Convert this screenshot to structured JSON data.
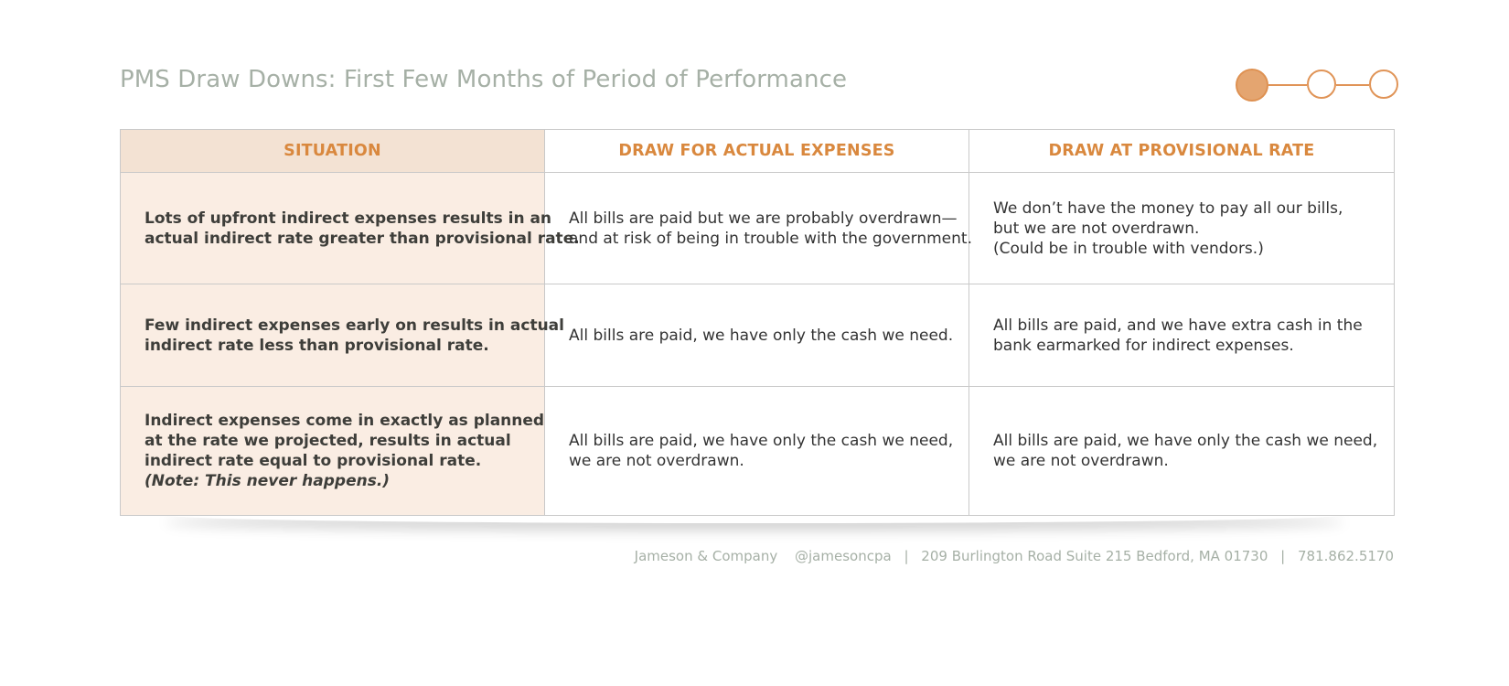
{
  "header": {
    "title": "PMS Draw Downs: First Few Months of Period of Performance",
    "progress": {
      "current_step": 1,
      "total_steps": 3
    }
  },
  "colors": {
    "accent": "#d9883e",
    "title_gray": "#a6b0a6",
    "situation_fill": "#faede3",
    "situation_header_fill": "#f3e2d3"
  },
  "table": {
    "headers": [
      "SITUATION",
      "DRAW FOR ACTUAL EXPENSES",
      "DRAW AT PROVISIONAL RATE"
    ],
    "rows": [
      {
        "situation": [
          "Lots of upfront indirect expenses results in an",
          "actual indirect rate greater than provisional rate."
        ],
        "actual": [
          "All bills are paid but we are probably overdrawn—",
          "and at risk of being in trouble with the government."
        ],
        "provisional": [
          "We don’t have the money to pay all our bills,",
          "but we are not overdrawn.",
          "(Could be in trouble with vendors.)"
        ]
      },
      {
        "situation": [
          "Few indirect expenses early on results in actual",
          "indirect rate less than provisional rate."
        ],
        "actual": [
          "All bills are paid, we have only the cash we need."
        ],
        "provisional": [
          "All bills are paid, and we have extra cash in the",
          "bank earmarked for indirect expenses."
        ]
      },
      {
        "situation": [
          "Indirect expenses come in exactly as planned",
          "at the rate we projected, results in actual",
          "indirect rate equal to provisional rate."
        ],
        "situation_note": "(Note: This never happens.)",
        "actual": [
          "All bills are paid, we have only the cash we need,",
          "we are not overdrawn."
        ],
        "provisional": [
          "All bills are paid, we have only the cash we need,",
          "we are not overdrawn."
        ]
      }
    ]
  },
  "footer": {
    "company": "Jameson & Company",
    "handle": "@jamesoncpa",
    "address": "209 Burlington Road Suite 215 Bedford, MA 01730",
    "phone": "781.862.5170",
    "separator": "|"
  }
}
